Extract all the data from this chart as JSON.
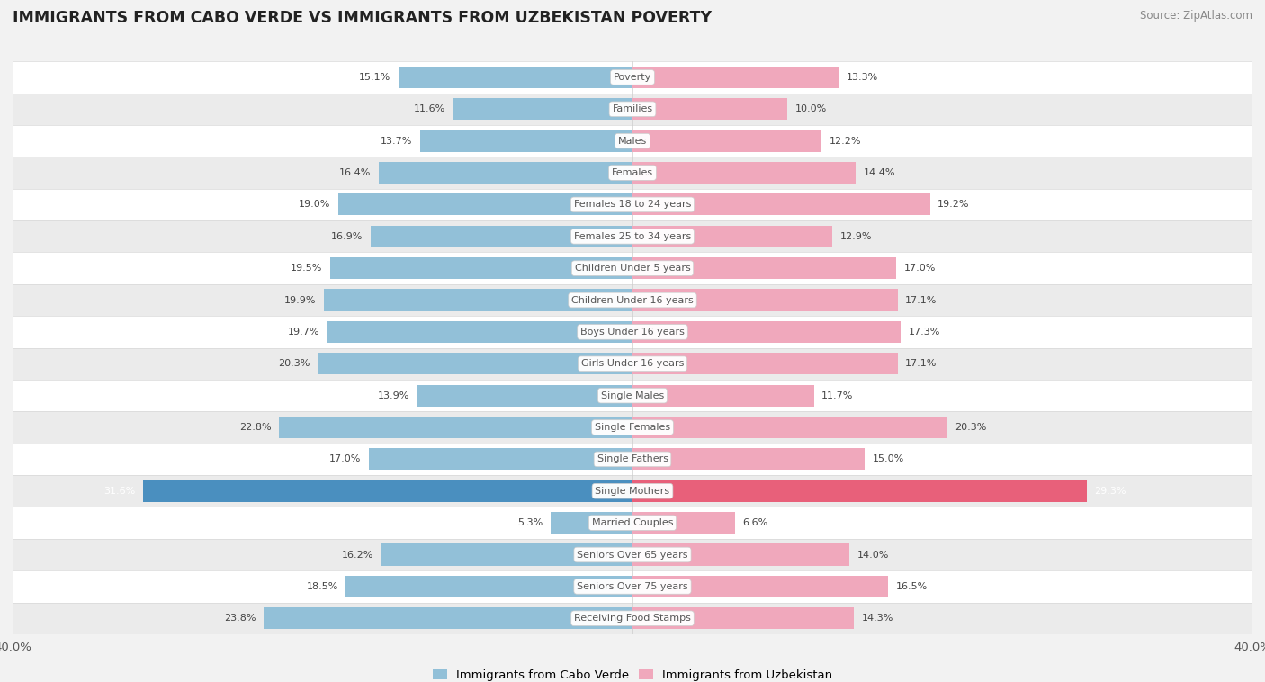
{
  "title": "IMMIGRANTS FROM CABO VERDE VS IMMIGRANTS FROM UZBEKISTAN POVERTY",
  "source": "Source: ZipAtlas.com",
  "categories": [
    "Poverty",
    "Families",
    "Males",
    "Females",
    "Females 18 to 24 years",
    "Females 25 to 34 years",
    "Children Under 5 years",
    "Children Under 16 years",
    "Boys Under 16 years",
    "Girls Under 16 years",
    "Single Males",
    "Single Females",
    "Single Fathers",
    "Single Mothers",
    "Married Couples",
    "Seniors Over 65 years",
    "Seniors Over 75 years",
    "Receiving Food Stamps"
  ],
  "cabo_verde": [
    15.1,
    11.6,
    13.7,
    16.4,
    19.0,
    16.9,
    19.5,
    19.9,
    19.7,
    20.3,
    13.9,
    22.8,
    17.0,
    31.6,
    5.3,
    16.2,
    18.5,
    23.8
  ],
  "uzbekistan": [
    13.3,
    10.0,
    12.2,
    14.4,
    19.2,
    12.9,
    17.0,
    17.1,
    17.3,
    17.1,
    11.7,
    20.3,
    15.0,
    29.3,
    6.6,
    14.0,
    16.5,
    14.3
  ],
  "max_val": 40.0,
  "cabo_verde_color": "#92c0d8",
  "uzbekistan_color": "#f0a8bc",
  "cabo_verde_high_color": "#4a8fbf",
  "uzbekistan_high_color": "#e8607a",
  "background_color": "#f2f2f2",
  "row_even_color": "#ffffff",
  "row_odd_color": "#ebebeb",
  "label_color": "#555555",
  "title_color": "#222222",
  "legend_cabo": "Immigrants from Cabo Verde",
  "legend_uzb": "Immigrants from Uzbekistan"
}
